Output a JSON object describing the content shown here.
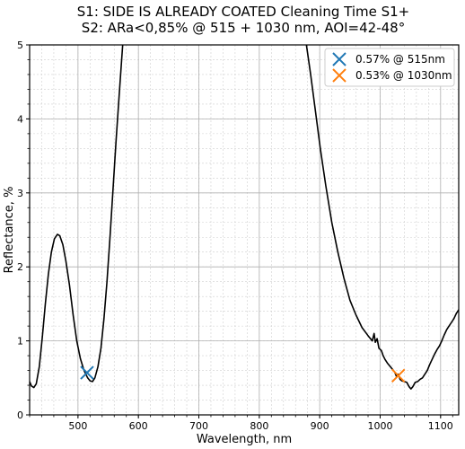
{
  "chart_data": {
    "type": "line",
    "title_line1": "S1: SIDE IS ALREADY COATED      Cleaning Time S1+",
    "title_line2": "S2: ARa<0,85% @ 515 + 1030 nm, AOI=42-48°",
    "xlabel": "Wavelength, nm",
    "ylabel": "Reflectance, %",
    "xlim": [
      420,
      1130
    ],
    "ylim": [
      0,
      5
    ],
    "x_ticks": [
      500,
      600,
      700,
      800,
      900,
      1000,
      1100
    ],
    "y_ticks": [
      0,
      1,
      2,
      3,
      4,
      5
    ],
    "x_minor_step": 20,
    "y_minor_step": 0.2,
    "grid": true,
    "legend_position": "top-right",
    "line_color": "#000000",
    "series": [
      {
        "points": [
          [
            420,
            0.45
          ],
          [
            423,
            0.39
          ],
          [
            427,
            0.37
          ],
          [
            431,
            0.42
          ],
          [
            436,
            0.65
          ],
          [
            441,
            1.05
          ],
          [
            446,
            1.5
          ],
          [
            451,
            1.9
          ],
          [
            456,
            2.2
          ],
          [
            461,
            2.38
          ],
          [
            466,
            2.44
          ],
          [
            470,
            2.42
          ],
          [
            475,
            2.3
          ],
          [
            480,
            2.08
          ],
          [
            486,
            1.75
          ],
          [
            492,
            1.35
          ],
          [
            498,
            1.0
          ],
          [
            504,
            0.76
          ],
          [
            510,
            0.6
          ],
          [
            516,
            0.5
          ],
          [
            520,
            0.46
          ],
          [
            524,
            0.45
          ],
          [
            528,
            0.5
          ],
          [
            533,
            0.65
          ],
          [
            538,
            0.9
          ],
          [
            543,
            1.3
          ],
          [
            548,
            1.8
          ],
          [
            553,
            2.4
          ],
          [
            558,
            3.05
          ],
          [
            563,
            3.7
          ],
          [
            568,
            4.3
          ],
          [
            571,
            4.65
          ],
          [
            574,
            5.0
          ],
          [
            576,
            5.3
          ],
          [
            578,
            5.6
          ]
        ]
      },
      {
        "points": [
          [
            872,
            5.5
          ],
          [
            878,
            5.0
          ],
          [
            885,
            4.6
          ],
          [
            893,
            4.1
          ],
          [
            901,
            3.6
          ],
          [
            910,
            3.1
          ],
          [
            920,
            2.6
          ],
          [
            930,
            2.2
          ],
          [
            940,
            1.85
          ],
          [
            950,
            1.55
          ],
          [
            960,
            1.35
          ],
          [
            970,
            1.18
          ],
          [
            980,
            1.07
          ],
          [
            987,
            1.0
          ],
          [
            990,
            1.1
          ],
          [
            992,
            0.98
          ],
          [
            995,
            1.03
          ],
          [
            998,
            0.9
          ],
          [
            1002,
            0.87
          ],
          [
            1005,
            0.8
          ],
          [
            1008,
            0.75
          ],
          [
            1012,
            0.7
          ],
          [
            1016,
            0.66
          ],
          [
            1020,
            0.62
          ],
          [
            1024,
            0.58
          ],
          [
            1027,
            0.52
          ],
          [
            1030,
            0.55
          ],
          [
            1033,
            0.48
          ],
          [
            1036,
            0.46
          ],
          [
            1040,
            0.45
          ],
          [
            1044,
            0.44
          ],
          [
            1048,
            0.38
          ],
          [
            1051,
            0.35
          ],
          [
            1054,
            0.38
          ],
          [
            1058,
            0.44
          ],
          [
            1062,
            0.45
          ],
          [
            1066,
            0.48
          ],
          [
            1070,
            0.5
          ],
          [
            1074,
            0.55
          ],
          [
            1078,
            0.6
          ],
          [
            1082,
            0.68
          ],
          [
            1086,
            0.75
          ],
          [
            1090,
            0.82
          ],
          [
            1094,
            0.88
          ],
          [
            1098,
            0.93
          ],
          [
            1102,
            1.0
          ],
          [
            1106,
            1.08
          ],
          [
            1110,
            1.15
          ],
          [
            1114,
            1.2
          ],
          [
            1118,
            1.25
          ],
          [
            1122,
            1.3
          ],
          [
            1126,
            1.37
          ],
          [
            1130,
            1.42
          ]
        ]
      }
    ],
    "markers": [
      {
        "label": "0.57% @ 515nm",
        "x": 515,
        "y": 0.57,
        "color": "#1f77b4"
      },
      {
        "label": "0.53% @ 1030nm",
        "x": 1030,
        "y": 0.53,
        "color": "#ff7f0e"
      }
    ]
  }
}
